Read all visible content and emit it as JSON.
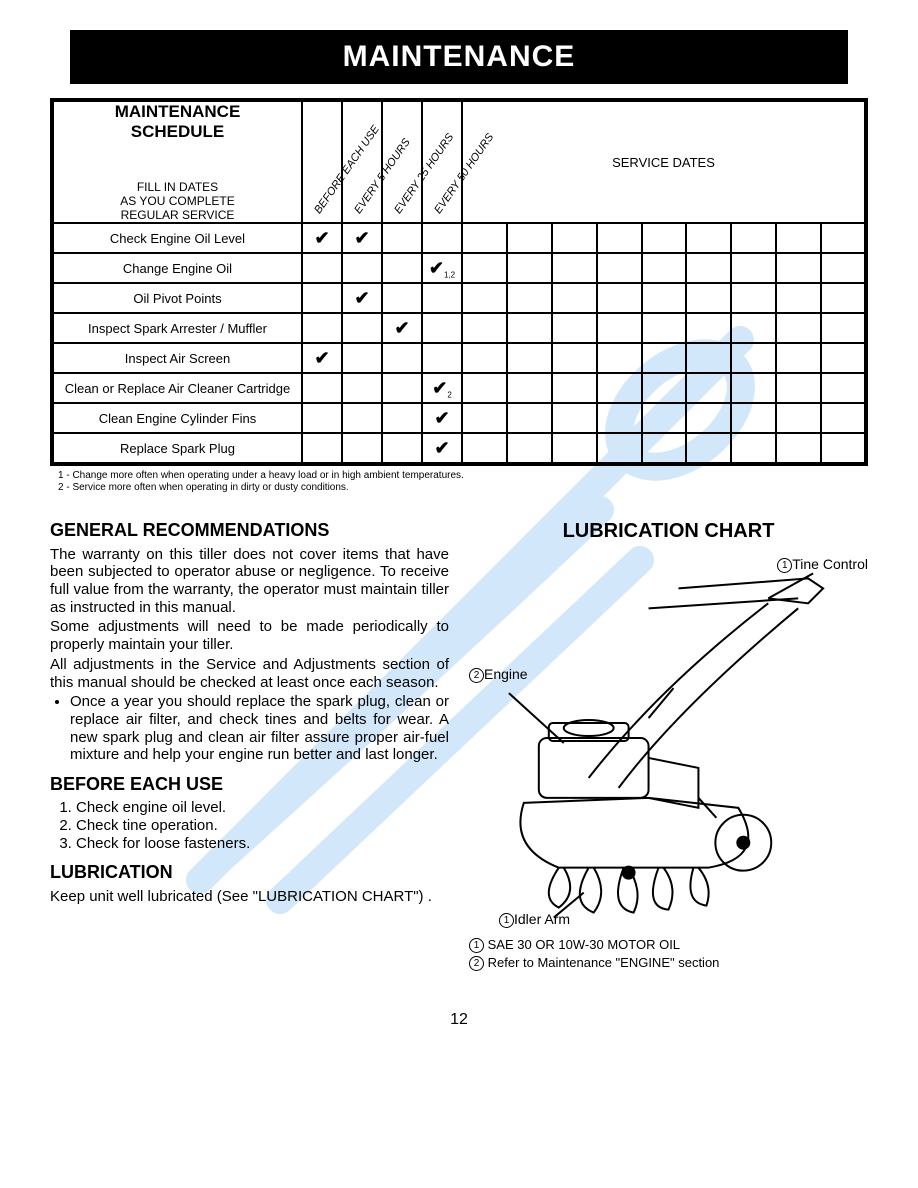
{
  "banner": "MAINTENANCE",
  "table": {
    "title": "MAINTENANCE SCHEDULE",
    "subtitle": "FILL IN DATES\nAS YOU COMPLETE\nREGULAR SERVICE",
    "interval_headers": [
      "BEFORE EACH USE",
      "EVERY 5 HOURS",
      "EVERY 25 HOURS",
      "EVERY 50 HOURS"
    ],
    "service_dates_label": "SERVICE DATES",
    "service_date_cols": 9,
    "rows": [
      {
        "task": "Check Engine Oil Level",
        "marks": [
          "✔",
          "✔",
          "",
          ""
        ]
      },
      {
        "task": "Change Engine Oil",
        "marks": [
          "",
          "",
          "",
          "✔"
        ],
        "subs": [
          "",
          "",
          "",
          "1,2"
        ]
      },
      {
        "task": "Oil Pivot Points",
        "marks": [
          "",
          "✔",
          "",
          ""
        ]
      },
      {
        "task": "Inspect Spark Arrester / Muffler",
        "marks": [
          "",
          "",
          "✔",
          ""
        ]
      },
      {
        "task": "Inspect Air Screen",
        "marks": [
          "✔",
          "",
          "",
          ""
        ]
      },
      {
        "task": "Clean or Replace Air Cleaner Cartridge",
        "marks": [
          "",
          "",
          "",
          "✔"
        ],
        "subs": [
          "",
          "",
          "",
          "2"
        ]
      },
      {
        "task": "Clean Engine Cylinder Fins",
        "marks": [
          "",
          "",
          "",
          "✔"
        ]
      },
      {
        "task": "Replace Spark Plug",
        "marks": [
          "",
          "",
          "",
          "✔"
        ]
      }
    ],
    "footnotes": [
      "1 - Change more often when operating under a heavy load or in high ambient temperatures.",
      "2 - Service more often when operating in dirty or dusty conditions."
    ]
  },
  "left": {
    "h_general": "GENERAL RECOMMENDATIONS",
    "general_p1": "The warranty on this tiller does not cover items that have been subjected to operator abuse or negligence. To receive full value from the warranty, the operator must maintain tiller as instructed in this manual.",
    "general_p2": "Some adjustments will need to be made periodically to properly maintain your tiller.",
    "general_p3": "All adjustments in the Service and Adjustments section of this manual should be checked at least once each season.",
    "bullet1": "Once a year you should replace the spark plug, clean or replace air filter, and check tines and belts for wear. A new spark plug and clean air filter assure proper air-fuel mixture and help your engine run better and last longer.",
    "h_before": "BEFORE EACH USE",
    "before_items": [
      "Check engine oil level.",
      "Check tine operation.",
      "Check for loose fasteners."
    ],
    "h_lub": "LUBRICATION",
    "lub_p": "Keep unit well lubricated (See \"LUBRICATION CHART\") ."
  },
  "right": {
    "h_chart": "LUBRICATION CHART",
    "callouts": {
      "tine_control": "Tine Control",
      "engine": "Engine",
      "idler_arm": "Idler Arm"
    },
    "legend1": "SAE 30 OR 10W-30 MOTOR OIL",
    "legend2": "Refer to Maintenance \"ENGINE\" section",
    "circled1": "1",
    "circled2": "2"
  },
  "page_number": "12",
  "colors": {
    "watermark": "#4da5e8"
  }
}
